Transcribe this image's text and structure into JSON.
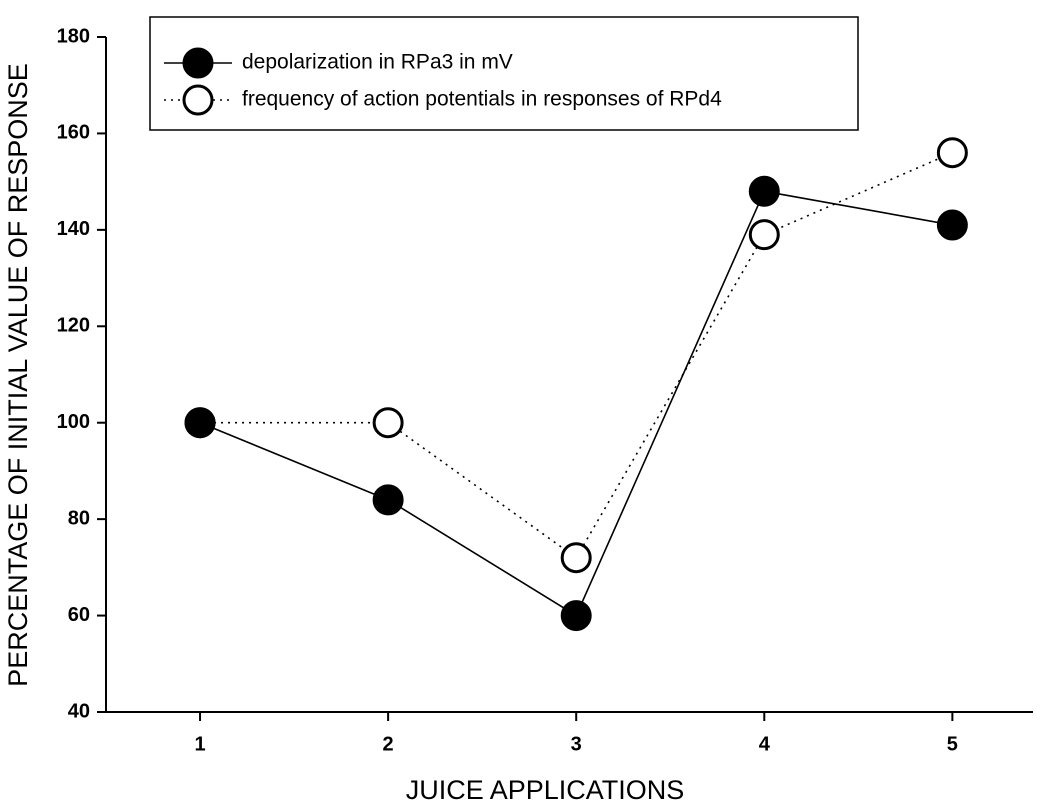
{
  "chart_data": {
    "type": "line",
    "xlabel": "JUICE APPLICATIONS",
    "ylabel": "PERCENTAGE OF INITIAL VALUE OF RESPONSE",
    "x": [
      1,
      2,
      3,
      4,
      5
    ],
    "series": [
      {
        "name": "depolarization in RPa3 in mV",
        "color": "#000000",
        "line_style": "solid",
        "marker_fill": true,
        "values": [
          100,
          84,
          60,
          148,
          141
        ]
      },
      {
        "name": "frequency of action potentials in responses of RPd4",
        "color": "#000000",
        "line_style": "dotted",
        "marker_fill": false,
        "values": [
          100,
          100,
          72,
          139,
          156
        ]
      }
    ],
    "xlim": [
      0.5,
      5.45
    ],
    "xticks": [
      1,
      2,
      3,
      4,
      5
    ],
    "ylim": [
      40,
      180
    ],
    "yticks": [
      40,
      60,
      80,
      100,
      120,
      140,
      160,
      180
    ],
    "grid": false,
    "legend": "top-left"
  }
}
